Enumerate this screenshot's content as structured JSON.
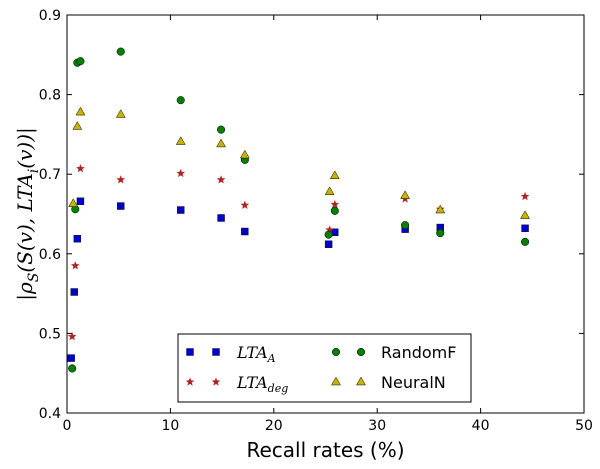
{
  "chart_data": {
    "type": "scatter",
    "xlabel": "Recall rates (%)",
    "ylabel": {
      "prefix": "|ρ",
      "sub1": "S",
      "middle": "(S(v), LTA",
      "sub2": "i",
      "suffix": "(v))|"
    },
    "xlim": [
      0,
      50
    ],
    "ylim": [
      0.4,
      0.9
    ],
    "xticks": [
      "0",
      "10",
      "20",
      "30",
      "40",
      "50"
    ],
    "yticks": [
      "0.4",
      "0.5",
      "0.6",
      "0.7",
      "0.8",
      "0.9"
    ],
    "legend_position": "lower-center",
    "series": [
      {
        "name": "LTA",
        "name_sub": "A",
        "marker": "square",
        "color": "#0000cc",
        "points": [
          [
            0.4,
            0.469
          ],
          [
            0.7,
            0.552
          ],
          [
            1.0,
            0.619
          ],
          [
            1.3,
            0.666
          ],
          [
            5.2,
            0.66
          ],
          [
            11.0,
            0.655
          ],
          [
            14.9,
            0.645
          ],
          [
            17.2,
            0.628
          ],
          [
            25.3,
            0.612
          ],
          [
            25.9,
            0.627
          ],
          [
            32.7,
            0.631
          ],
          [
            36.1,
            0.633
          ],
          [
            44.3,
            0.632
          ]
        ]
      },
      {
        "name": "LTA",
        "name_sub": "deg",
        "marker": "star",
        "color": "#b22222",
        "points": [
          [
            0.5,
            0.496
          ],
          [
            0.8,
            0.585
          ],
          [
            1.3,
            0.707
          ],
          [
            5.2,
            0.693
          ],
          [
            11.0,
            0.701
          ],
          [
            14.9,
            0.693
          ],
          [
            17.2,
            0.661
          ],
          [
            25.4,
            0.63
          ],
          [
            25.9,
            0.662
          ],
          [
            32.7,
            0.669
          ],
          [
            36.1,
            0.656
          ],
          [
            44.3,
            0.672
          ]
        ]
      },
      {
        "name": "RandomF",
        "marker": "circle",
        "color": "#007f00",
        "points": [
          [
            0.5,
            0.456
          ],
          [
            0.8,
            0.656
          ],
          [
            1.0,
            0.84
          ],
          [
            1.3,
            0.842
          ],
          [
            5.2,
            0.854
          ],
          [
            11.0,
            0.793
          ],
          [
            14.9,
            0.756
          ],
          [
            17.2,
            0.718
          ],
          [
            25.3,
            0.624
          ],
          [
            25.9,
            0.654
          ],
          [
            32.7,
            0.636
          ],
          [
            36.1,
            0.626
          ],
          [
            44.3,
            0.615
          ]
        ]
      },
      {
        "name": "NeuralN",
        "marker": "triangle",
        "color": "#c8b400",
        "points": [
          [
            0.6,
            0.663
          ],
          [
            1.0,
            0.76
          ],
          [
            1.3,
            0.778
          ],
          [
            5.2,
            0.775
          ],
          [
            11.0,
            0.741
          ],
          [
            14.9,
            0.738
          ],
          [
            17.2,
            0.724
          ],
          [
            25.4,
            0.678
          ],
          [
            25.9,
            0.698
          ],
          [
            32.7,
            0.673
          ],
          [
            36.1,
            0.655
          ],
          [
            44.3,
            0.648
          ]
        ]
      }
    ]
  }
}
